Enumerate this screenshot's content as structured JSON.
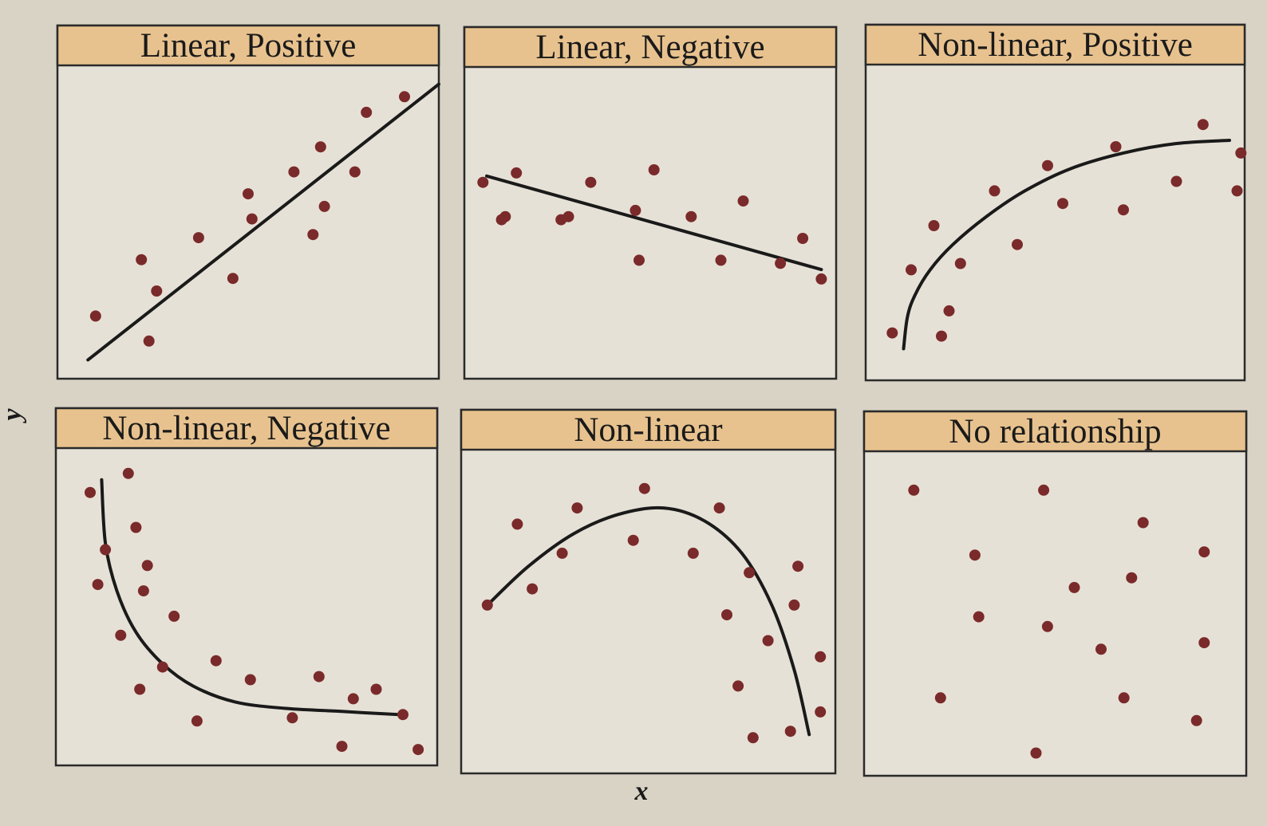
{
  "figure": {
    "x_axis_label": "x",
    "y_axis_label": "y"
  },
  "colors": {
    "page_background": "#d9d3c6",
    "plot_background": "#e6e1d6",
    "title_band": "#e8c28e",
    "border": "#2a2a2a",
    "point": "#7a2a2a",
    "curve": "#1a1a1a"
  },
  "chart_data": [
    {
      "type": "scatter",
      "title": "Linear, Positive",
      "xlim": [
        0,
        10
      ],
      "ylim": [
        0,
        10
      ],
      "points": [
        [
          1.0,
          2.0
        ],
        [
          2.2,
          3.8
        ],
        [
          2.6,
          2.8
        ],
        [
          2.4,
          1.2
        ],
        [
          3.7,
          4.5
        ],
        [
          4.6,
          3.2
        ],
        [
          5.0,
          5.9
        ],
        [
          5.1,
          5.1
        ],
        [
          6.2,
          6.6
        ],
        [
          6.7,
          4.6
        ],
        [
          7.0,
          5.5
        ],
        [
          6.9,
          7.4
        ],
        [
          7.8,
          6.6
        ],
        [
          8.1,
          8.5
        ],
        [
          9.1,
          9.0
        ]
      ],
      "curve": {
        "shape": "line",
        "points": [
          [
            0.8,
            0.6
          ],
          [
            10.0,
            9.4
          ]
        ]
      }
    },
    {
      "type": "scatter",
      "title": "Linear, Negative",
      "xlim": [
        0,
        10
      ],
      "ylim": [
        0,
        10
      ],
      "points": [
        [
          0.5,
          6.3
        ],
        [
          1.0,
          5.1
        ],
        [
          1.1,
          5.2
        ],
        [
          1.4,
          6.6
        ],
        [
          2.6,
          5.1
        ],
        [
          2.8,
          5.2
        ],
        [
          3.4,
          6.3
        ],
        [
          4.6,
          5.4
        ],
        [
          4.7,
          3.8
        ],
        [
          5.1,
          6.7
        ],
        [
          6.1,
          5.2
        ],
        [
          6.9,
          3.8
        ],
        [
          7.5,
          5.7
        ],
        [
          8.5,
          3.7
        ],
        [
          9.1,
          4.5
        ],
        [
          9.6,
          3.2
        ]
      ],
      "curve": {
        "shape": "line",
        "points": [
          [
            0.6,
            6.5
          ],
          [
            9.6,
            3.5
          ]
        ]
      }
    },
    {
      "type": "scatter",
      "title": "Non-linear, Positive",
      "xlim": [
        0,
        10
      ],
      "ylim": [
        0,
        10
      ],
      "points": [
        [
          0.7,
          1.5
        ],
        [
          1.2,
          3.5
        ],
        [
          1.8,
          4.9
        ],
        [
          2.0,
          1.4
        ],
        [
          2.2,
          2.2
        ],
        [
          2.5,
          3.7
        ],
        [
          3.4,
          6.0
        ],
        [
          4.0,
          4.3
        ],
        [
          4.8,
          6.8
        ],
        [
          5.2,
          5.6
        ],
        [
          6.6,
          7.4
        ],
        [
          6.8,
          5.4
        ],
        [
          8.2,
          6.3
        ],
        [
          8.9,
          8.1
        ],
        [
          9.8,
          6.0
        ],
        [
          9.9,
          7.2
        ]
      ],
      "curve": {
        "shape": "concave-increasing",
        "points": [
          [
            1.0,
            1.0
          ],
          [
            1.1,
            2.0
          ],
          [
            1.3,
            2.7
          ],
          [
            1.7,
            3.5
          ],
          [
            2.3,
            4.3
          ],
          [
            3.2,
            5.2
          ],
          [
            4.2,
            6.0
          ],
          [
            5.4,
            6.7
          ],
          [
            6.8,
            7.2
          ],
          [
            8.2,
            7.5
          ],
          [
            9.6,
            7.6
          ]
        ]
      }
    },
    {
      "type": "scatter",
      "title": "Non-linear, Negative",
      "xlim": [
        0,
        10
      ],
      "ylim": [
        0,
        10
      ],
      "points": [
        [
          0.9,
          8.6
        ],
        [
          1.3,
          6.8
        ],
        [
          1.1,
          5.7
        ],
        [
          1.7,
          4.1
        ],
        [
          1.9,
          9.2
        ],
        [
          2.1,
          7.5
        ],
        [
          2.2,
          2.4
        ],
        [
          2.3,
          5.5
        ],
        [
          2.4,
          6.3
        ],
        [
          2.8,
          3.1
        ],
        [
          3.1,
          4.7
        ],
        [
          3.7,
          1.4
        ],
        [
          4.2,
          3.3
        ],
        [
          5.1,
          2.7
        ],
        [
          6.2,
          1.5
        ],
        [
          6.9,
          2.8
        ],
        [
          7.5,
          0.6
        ],
        [
          7.8,
          2.1
        ],
        [
          8.4,
          2.4
        ],
        [
          9.1,
          1.6
        ],
        [
          9.5,
          0.5
        ]
      ],
      "curve": {
        "shape": "convex-decreasing",
        "points": [
          [
            1.2,
            9.0
          ],
          [
            1.3,
            7.0
          ],
          [
            1.6,
            5.5
          ],
          [
            2.1,
            4.2
          ],
          [
            2.8,
            3.2
          ],
          [
            3.6,
            2.5
          ],
          [
            4.7,
            2.0
          ],
          [
            6.0,
            1.8
          ],
          [
            7.5,
            1.7
          ],
          [
            9.0,
            1.6
          ]
        ]
      }
    },
    {
      "type": "scatter",
      "title": "Non-linear",
      "xlim": [
        0,
        10
      ],
      "ylim": [
        0,
        10
      ],
      "points": [
        [
          0.7,
          5.2
        ],
        [
          1.5,
          7.7
        ],
        [
          1.9,
          5.7
        ],
        [
          2.7,
          6.8
        ],
        [
          3.1,
          8.2
        ],
        [
          4.6,
          7.2
        ],
        [
          4.9,
          8.8
        ],
        [
          6.2,
          6.8
        ],
        [
          6.9,
          8.2
        ],
        [
          7.1,
          4.9
        ],
        [
          7.4,
          2.7
        ],
        [
          7.7,
          6.2
        ],
        [
          7.8,
          1.1
        ],
        [
          8.2,
          4.1
        ],
        [
          8.8,
          1.3
        ],
        [
          8.9,
          5.2
        ],
        [
          9.0,
          6.4
        ],
        [
          9.6,
          3.6
        ],
        [
          9.6,
          1.9
        ]
      ],
      "curve": {
        "shape": "concave-arch",
        "points": [
          [
            0.7,
            5.2
          ],
          [
            1.8,
            6.4
          ],
          [
            3.0,
            7.4
          ],
          [
            4.2,
            8.0
          ],
          [
            5.4,
            8.2
          ],
          [
            6.5,
            7.8
          ],
          [
            7.5,
            6.8
          ],
          [
            8.3,
            5.2
          ],
          [
            8.9,
            3.2
          ],
          [
            9.3,
            1.2
          ]
        ]
      }
    },
    {
      "type": "scatter",
      "title": "No relationship",
      "xlim": [
        0,
        10
      ],
      "ylim": [
        0,
        10
      ],
      "points": [
        [
          1.3,
          8.8
        ],
        [
          2.9,
          6.8
        ],
        [
          3.0,
          4.9
        ],
        [
          2.0,
          2.4
        ],
        [
          4.7,
          8.8
        ],
        [
          4.8,
          4.6
        ],
        [
          5.5,
          5.8
        ],
        [
          4.5,
          0.7
        ],
        [
          6.2,
          3.9
        ],
        [
          6.8,
          2.4
        ],
        [
          7.0,
          6.1
        ],
        [
          7.3,
          7.8
        ],
        [
          8.9,
          4.1
        ],
        [
          8.9,
          6.9
        ],
        [
          8.7,
          1.7
        ]
      ],
      "curve": null
    }
  ]
}
